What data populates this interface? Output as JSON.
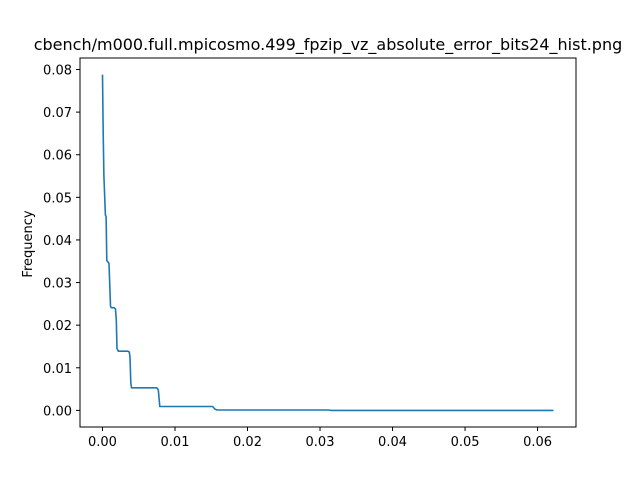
{
  "chart_data": {
    "type": "line",
    "title": "cbench/m000.full.mpicosmo.499_fpzip_vz_absolute_error_bits24_hist.png",
    "xlabel": "",
    "ylabel": "Frequency",
    "xlim": [
      -0.0031,
      0.0653
    ],
    "ylim": [
      -0.0039,
      0.0827
    ],
    "x_ticks": [
      0.0,
      0.01,
      0.02,
      0.03,
      0.04,
      0.05,
      0.06
    ],
    "x_tick_labels": [
      "0.00",
      "0.01",
      "0.02",
      "0.03",
      "0.04",
      "0.05",
      "0.06"
    ],
    "y_ticks": [
      0.0,
      0.01,
      0.02,
      0.03,
      0.04,
      0.05,
      0.06,
      0.07,
      0.08
    ],
    "y_tick_labels": [
      "0.00",
      "0.01",
      "0.02",
      "0.03",
      "0.04",
      "0.05",
      "0.06",
      "0.07",
      "0.08"
    ],
    "grid": false,
    "series": [
      {
        "color": "#1f77b4",
        "x": [
          0.0,
          0.0001,
          0.0002,
          0.0004,
          0.0005,
          0.0006,
          0.0008,
          0.0009,
          0.0011,
          0.0012,
          0.0013,
          0.0016,
          0.0018,
          0.0019,
          0.002,
          0.0022,
          0.0024,
          0.0035,
          0.0037,
          0.0038,
          0.0039,
          0.004,
          0.0055,
          0.0075,
          0.0077,
          0.0079,
          0.0152,
          0.0155,
          0.0158,
          0.0312,
          0.0315,
          0.0622
        ],
        "y": [
          0.0788,
          0.065,
          0.055,
          0.0458,
          0.0455,
          0.0352,
          0.0347,
          0.0345,
          0.0245,
          0.0241,
          0.0241,
          0.0241,
          0.0238,
          0.0212,
          0.0145,
          0.0139,
          0.0139,
          0.0139,
          0.0137,
          0.0125,
          0.0065,
          0.0053,
          0.0053,
          0.0053,
          0.0048,
          0.0009,
          0.0009,
          0.0003,
          0.0001,
          0.0001,
          0.0,
          0.0
        ]
      }
    ]
  }
}
